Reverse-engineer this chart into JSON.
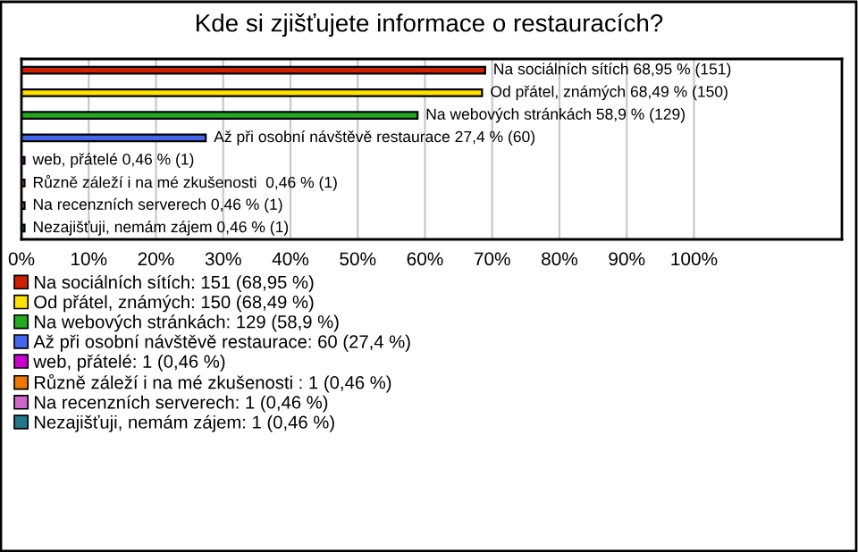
{
  "chart_data": {
    "type": "bar",
    "orientation": "horizontal",
    "title": "Kde si zjišťujete informace o restauracích?",
    "categories": [
      null,
      null,
      null,
      null,
      null,
      null,
      null,
      null
    ],
    "series": [
      {
        "name": "Na sociálních sítích: 151 (68,95 %)",
        "color": "#cc2200",
        "values": [
          68.95,
          null,
          null,
          null,
          null,
          null,
          null,
          null
        ],
        "value_labels": [
          "Na sociálních sítích 68,95 % (151)",
          null,
          null,
          null,
          null,
          null,
          null,
          null
        ]
      },
      {
        "name": "Od přátel, známých: 150 (68,49 %)",
        "color": "#ffe000",
        "values": [
          null,
          68.49,
          null,
          null,
          null,
          null,
          null,
          null
        ],
        "value_labels": [
          null,
          "Od přátel, známých 68,49 % (150)",
          null,
          null,
          null,
          null,
          null,
          null
        ]
      },
      {
        "name": "Na webových stránkách: 129 (58,9 %)",
        "color": "#22aa22",
        "values": [
          null,
          null,
          58.9,
          null,
          null,
          null,
          null,
          null
        ],
        "value_labels": [
          null,
          null,
          "Na webových stránkách 58,9 % (129)",
          null,
          null,
          null,
          null,
          null
        ]
      },
      {
        "name": "Až při osobní návštěvě restaurace: 60 (27,4 %)",
        "color": "#4466ee",
        "values": [
          null,
          null,
          null,
          27.4,
          null,
          null,
          null,
          null
        ],
        "value_labels": [
          null,
          null,
          null,
          "Až při osobní návštěvě restaurace 27,4 % (60)",
          null,
          null,
          null,
          null
        ]
      },
      {
        "name": "web, přátelé: 1 (0,46 %)",
        "color": "#cc00cc",
        "values": [
          null,
          null,
          null,
          null,
          0.46,
          null,
          null,
          null
        ],
        "value_labels": [
          null,
          null,
          null,
          null,
          "web, přátelé 0,46 % (1)",
          null,
          null,
          null
        ]
      },
      {
        "name": "Různě záleží i na mé zkušenosti : 1 (0,46 %)",
        "color": "#ee7700",
        "values": [
          null,
          null,
          null,
          null,
          null,
          0.46,
          null,
          null
        ],
        "value_labels": [
          null,
          null,
          null,
          null,
          null,
          "Různě záleží i na mé zkušenosti  0,46 % (1)",
          null,
          null
        ]
      },
      {
        "name": "Na recenzních serverech: 1 (0,46 %)",
        "color": "#cc66cc",
        "values": [
          null,
          null,
          null,
          null,
          null,
          null,
          0.46,
          null
        ],
        "value_labels": [
          null,
          null,
          null,
          null,
          null,
          null,
          "Na recenzních serverech 0,46 % (1)",
          null
        ]
      },
      {
        "name": "Nezajišťuji, nemám zájem: 1 (0,46 %)",
        "color": "#227788",
        "values": [
          null,
          null,
          null,
          null,
          null,
          null,
          null,
          0.46
        ],
        "value_labels": [
          null,
          null,
          null,
          null,
          null,
          null,
          null,
          "Nezajišťuji, nemám zájem 0,46 % (1)"
        ]
      }
    ],
    "xlim": [
      0,
      122
    ],
    "xticks": [
      {
        "value": 0,
        "label": "0%"
      },
      {
        "value": 10,
        "label": "10%"
      },
      {
        "value": 20,
        "label": "20%"
      },
      {
        "value": 30,
        "label": "30%"
      },
      {
        "value": 40,
        "label": "40%"
      },
      {
        "value": 50,
        "label": "50%"
      },
      {
        "value": 60,
        "label": "60%"
      },
      {
        "value": 70,
        "label": "70%"
      },
      {
        "value": 80,
        "label": "80%"
      },
      {
        "value": 90,
        "label": "90%"
      },
      {
        "value": 100,
        "label": "100%"
      }
    ],
    "grid": "x",
    "legend": "bottom"
  }
}
